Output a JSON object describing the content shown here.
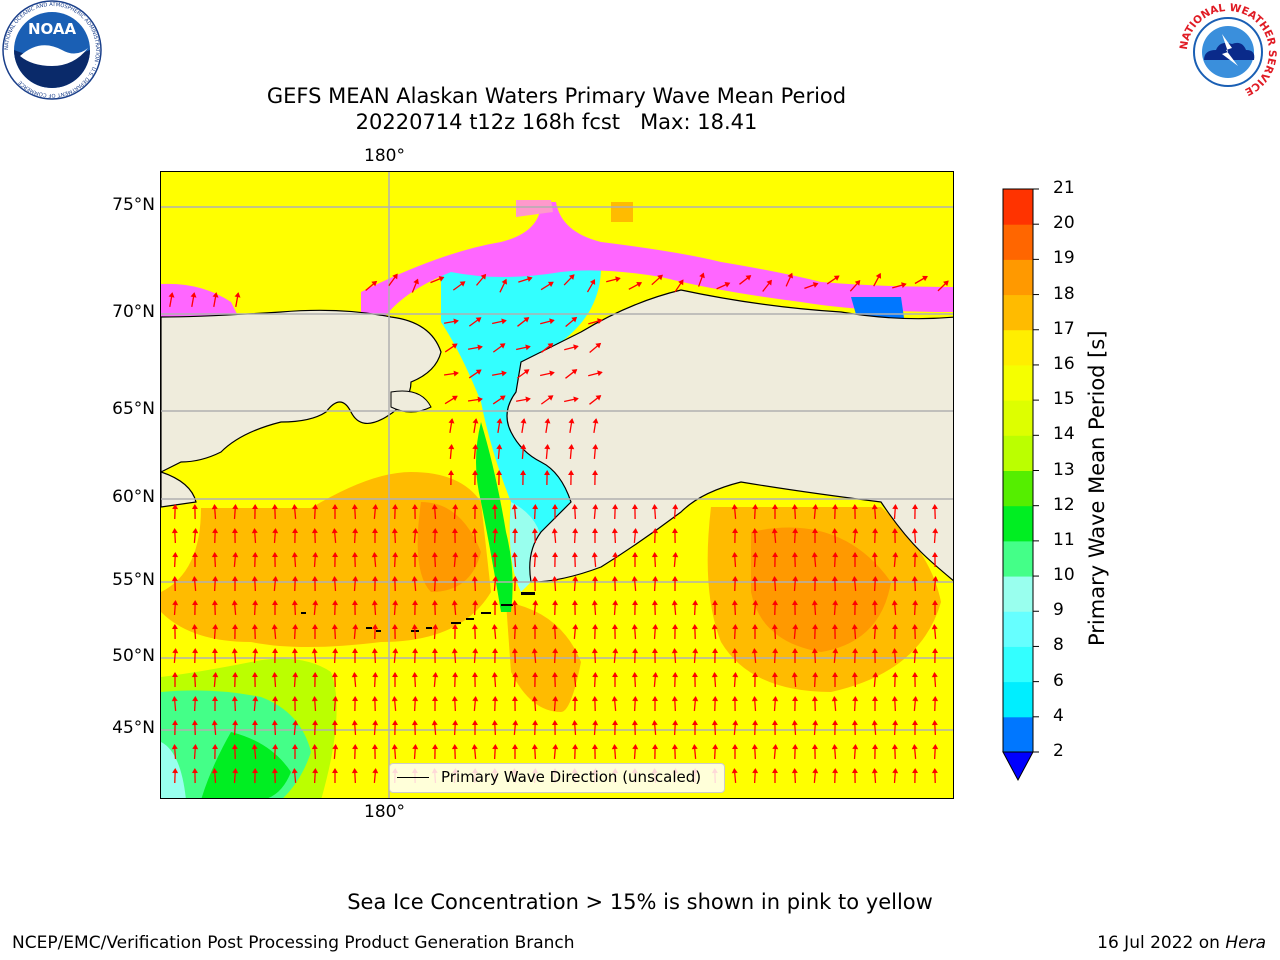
{
  "title": {
    "line1": "GEFS MEAN Alaskan Waters Primary Wave Mean Period",
    "line2": "20220714 t12z 168h fcst   Max: 18.41"
  },
  "logos": {
    "left": {
      "icon": "noaa-logo",
      "text": "NOAA",
      "ring": "NATIONAL OCEANIC AND ATMOSPHERIC ADMINISTRATION · U.S. DEPARTMENT OF COMMERCE"
    },
    "right": {
      "icon": "nws-logo",
      "ring": "NATIONAL WEATHER SERVICE"
    }
  },
  "map": {
    "lon_labels": {
      "top": "180°",
      "bottom": "180°"
    },
    "lat_labels": [
      "75°N",
      "70°N",
      "65°N",
      "60°N",
      "55°N",
      "50°N",
      "45°N"
    ],
    "colors": {
      "land": "#efecdc",
      "coast": "#000000",
      "grid": "#b0b0b0",
      "arrow": "#ff0000",
      "ice_pink": "#ff66ff",
      "ice_magenta": "#ee44ee"
    },
    "legend": {
      "label": "Primary Wave Direction (unscaled)"
    }
  },
  "colorbar": {
    "label": "Primary Wave Mean Period [s]",
    "ticks": [
      "2",
      "4",
      "6",
      "8",
      "9",
      "10",
      "11",
      "12",
      "13",
      "14",
      "15",
      "16",
      "17",
      "18",
      "19",
      "20",
      "21"
    ],
    "colors": [
      "#0077ff",
      "#00eeff",
      "#33ffff",
      "#66ffff",
      "#99ffee",
      "#44ff88",
      "#00ee22",
      "#55ee00",
      "#bbff00",
      "#ddff00",
      "#f5ff00",
      "#ffee00",
      "#ffbb00",
      "#ff9900",
      "#ff6600",
      "#ff3300",
      "#ff0000"
    ],
    "under_color": "#0000ff"
  },
  "ice_note": "Sea Ice Concentration > 15% is shown in pink to yellow",
  "footer": {
    "left": "NCEP/EMC/Verification Post Processing Product Generation Branch",
    "right_prefix": "16 Jul 2022 on ",
    "right_host": "Hera"
  }
}
